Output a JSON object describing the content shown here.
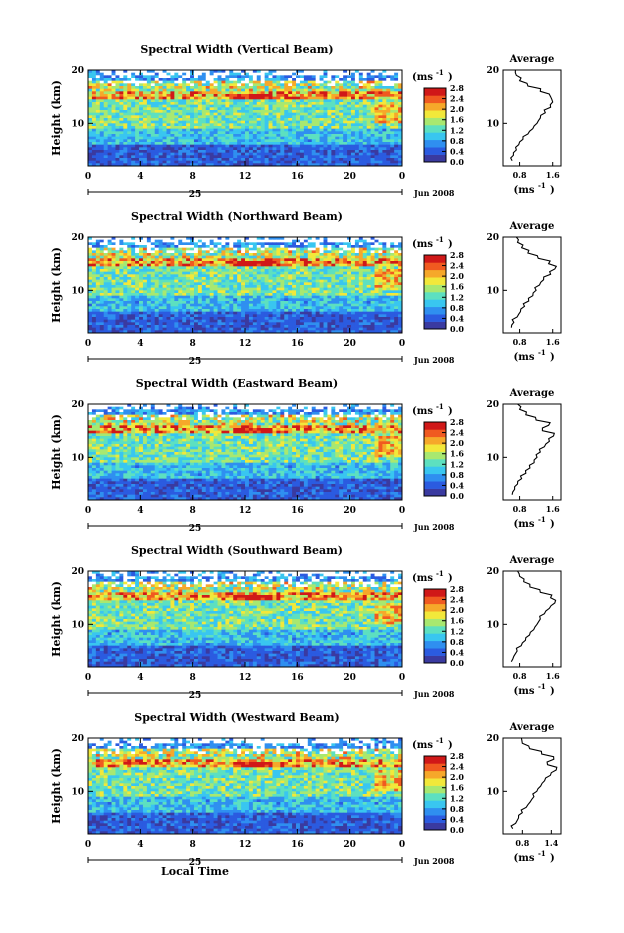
{
  "figure": {
    "xlabel": "Local Time",
    "date_label": "Jun 2008",
    "day_label": "25",
    "cbar_unit": "(ms",
    "cbar_exp": "-1",
    "avg_title": "Average",
    "avg_unit": "(ms",
    "ylabel": "Height (km)"
  },
  "chart_data": [
    {
      "type": "heatmap",
      "title": "Spectral Width (Vertical Beam)",
      "ylabel": "Height (km)",
      "xlabel": "Local Time",
      "x_ticks": [
        "0",
        "4",
        "8",
        "12",
        "16",
        "20",
        "0"
      ],
      "y_ticks": [
        "20",
        "10"
      ],
      "xlim": [
        0,
        24
      ],
      "ylim": [
        2,
        20
      ],
      "colorbar": {
        "unit": "ms-1",
        "ticks": [
          "2.8",
          "2.4",
          "2.0",
          "1.6",
          "1.2",
          "0.8",
          "0.4",
          "0.0"
        ],
        "range": [
          0.0,
          2.8
        ]
      },
      "average_profile": {
        "title": "Average",
        "x_ticks": [
          "0.8",
          "1.6"
        ],
        "xlim": [
          0.4,
          1.8
        ],
        "y_ticks": [
          "20",
          "10"
        ],
        "height_km": [
          3,
          4,
          5,
          6,
          7,
          8,
          9,
          10,
          11,
          12,
          13,
          14,
          15,
          16,
          17,
          18,
          19,
          20
        ],
        "width_ms": [
          0.62,
          0.65,
          0.72,
          0.78,
          0.88,
          1.0,
          1.12,
          1.22,
          1.3,
          1.42,
          1.55,
          1.6,
          1.55,
          1.3,
          1.0,
          0.8,
          0.72,
          0.7
        ]
      }
    },
    {
      "type": "heatmap",
      "title": "Spectral Width (Northward Beam)",
      "ylabel": "Height (km)",
      "xlabel": "Local Time",
      "x_ticks": [
        "0",
        "4",
        "8",
        "12",
        "16",
        "20",
        "0"
      ],
      "y_ticks": [
        "20",
        "10"
      ],
      "xlim": [
        0,
        24
      ],
      "ylim": [
        2,
        20
      ],
      "colorbar": {
        "unit": "ms-1",
        "ticks": [
          "2.8",
          "2.4",
          "2.0",
          "1.6",
          "1.2",
          "0.8",
          "0.4",
          "0.0"
        ],
        "range": [
          0.0,
          2.8
        ]
      },
      "average_profile": {
        "title": "Average",
        "x_ticks": [
          "0.8",
          "1.6"
        ],
        "xlim": [
          0.4,
          1.8
        ],
        "y_ticks": [
          "20",
          "10"
        ],
        "height_km": [
          3,
          4,
          5,
          6,
          7,
          8,
          9,
          10,
          11,
          12,
          13,
          14,
          15,
          16,
          17,
          18,
          19,
          20
        ],
        "width_ms": [
          0.6,
          0.66,
          0.74,
          0.82,
          0.92,
          1.02,
          1.12,
          1.2,
          1.28,
          1.38,
          1.55,
          1.65,
          1.5,
          1.25,
          1.0,
          0.85,
          0.75,
          0.72
        ]
      }
    },
    {
      "type": "heatmap",
      "title": "Spectral Width (Eastward Beam)",
      "ylabel": "Height (km)",
      "xlabel": "Local Time",
      "x_ticks": [
        "0",
        "4",
        "8",
        "12",
        "16",
        "20",
        "0"
      ],
      "y_ticks": [
        "20",
        "10"
      ],
      "xlim": [
        0,
        24
      ],
      "ylim": [
        2,
        20
      ],
      "colorbar": {
        "unit": "ms-1",
        "ticks": [
          "2.8",
          "2.4",
          "2.0",
          "1.6",
          "1.2",
          "0.8",
          "0.4",
          "0.0"
        ],
        "range": [
          0.0,
          2.8
        ]
      },
      "average_profile": {
        "title": "Average",
        "x_ticks": [
          "0.8",
          "1.6"
        ],
        "xlim": [
          0.4,
          1.8
        ],
        "y_ticks": [
          "20",
          "10"
        ],
        "height_km": [
          3,
          4,
          5,
          6,
          7,
          8,
          9,
          10,
          11,
          12,
          13,
          14,
          15,
          16,
          17,
          18,
          19,
          20
        ],
        "width_ms": [
          0.62,
          0.68,
          0.75,
          0.85,
          0.95,
          1.05,
          1.15,
          1.22,
          1.3,
          1.4,
          1.52,
          1.62,
          1.35,
          1.5,
          1.2,
          0.95,
          0.8,
          0.75
        ]
      }
    },
    {
      "type": "heatmap",
      "title": "Spectral Width (Southward Beam)",
      "ylabel": "Height (km)",
      "xlabel": "Local Time",
      "x_ticks": [
        "0",
        "4",
        "8",
        "12",
        "16",
        "20",
        "0"
      ],
      "y_ticks": [
        "20",
        "10"
      ],
      "xlim": [
        0,
        24
      ],
      "ylim": [
        2,
        20
      ],
      "colorbar": {
        "unit": "ms-1",
        "ticks": [
          "2.8",
          "2.4",
          "2.0",
          "1.6",
          "1.2",
          "0.8",
          "0.4",
          "0.0"
        ],
        "range": [
          0.0,
          2.8
        ]
      },
      "average_profile": {
        "title": "Average",
        "x_ticks": [
          "0.8",
          "1.6"
        ],
        "xlim": [
          0.4,
          1.8
        ],
        "y_ticks": [
          "20",
          "10"
        ],
        "height_km": [
          3,
          4,
          5,
          6,
          7,
          8,
          9,
          10,
          11,
          12,
          13,
          14,
          15,
          16,
          17,
          18,
          19,
          20
        ],
        "width_ms": [
          0.6,
          0.66,
          0.74,
          0.84,
          0.94,
          1.04,
          1.14,
          1.22,
          1.3,
          1.4,
          1.52,
          1.65,
          1.55,
          1.3,
          1.05,
          0.9,
          0.8,
          0.75
        ]
      }
    },
    {
      "type": "heatmap",
      "title": "Spectral Width (Westward Beam)",
      "ylabel": "Height (km)",
      "xlabel": "Local Time",
      "x_ticks": [
        "0",
        "4",
        "8",
        "12",
        "16",
        "20",
        "0"
      ],
      "y_ticks": [
        "20",
        "10"
      ],
      "xlim": [
        0,
        24
      ],
      "ylim": [
        2,
        20
      ],
      "colorbar": {
        "unit": "ms-1",
        "ticks": [
          "2.8",
          "2.4",
          "2.0",
          "1.6",
          "1.2",
          "0.8",
          "0.4",
          "0.0"
        ],
        "range": [
          0.0,
          2.8
        ]
      },
      "average_profile": {
        "title": "Average",
        "x_ticks": [
          "0.8",
          "1.4"
        ],
        "xlim": [
          0.4,
          1.6
        ],
        "y_ticks": [
          "20",
          "10"
        ],
        "height_km": [
          3,
          4,
          5,
          6,
          7,
          8,
          9,
          10,
          11,
          12,
          13,
          14,
          15,
          16,
          17,
          18,
          19,
          20
        ],
        "width_ms": [
          0.6,
          0.66,
          0.72,
          0.8,
          0.88,
          0.96,
          1.04,
          1.1,
          1.18,
          1.26,
          1.38,
          1.5,
          1.32,
          1.45,
          1.2,
          0.95,
          0.8,
          0.78
        ]
      }
    }
  ],
  "colors": {
    "scale": [
      "#3a3aa0",
      "#2b5be0",
      "#2f8ff0",
      "#39c6f0",
      "#5de0c0",
      "#a8e870",
      "#f2e83a",
      "#f6a82a",
      "#f05a20",
      "#d01818"
    ]
  }
}
